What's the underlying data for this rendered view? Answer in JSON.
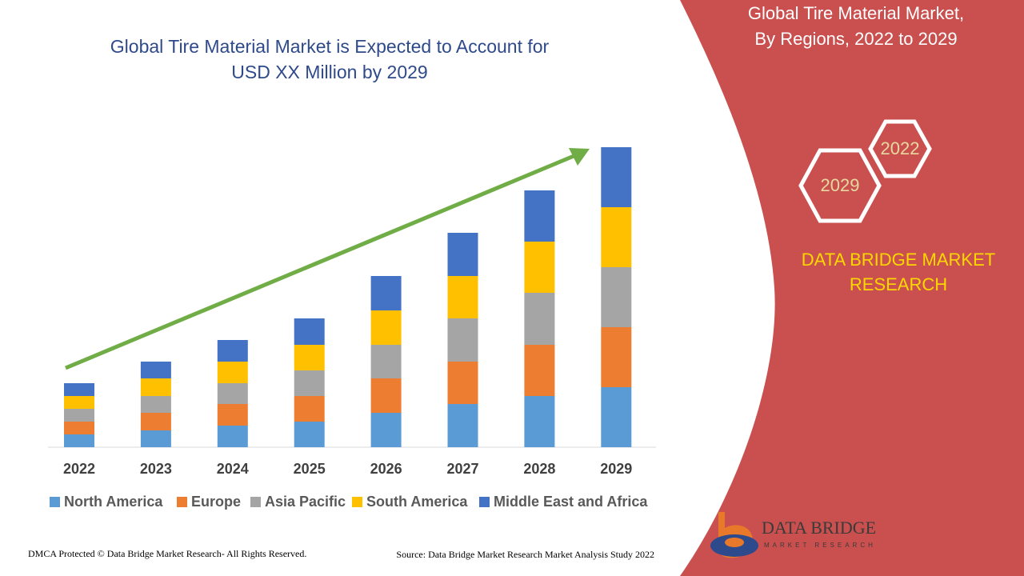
{
  "chart_data": {
    "type": "bar",
    "stacked": true,
    "title": [
      "Global Tire Material Market is Expected to Account for",
      "USD XX Million by 2029"
    ],
    "categories": [
      "2022",
      "2023",
      "2024",
      "2025",
      "2026",
      "2027",
      "2028",
      "2029"
    ],
    "series": [
      {
        "name": "North America",
        "color": "#5b9bd5",
        "values": [
          16,
          21,
          27,
          32,
          43,
          54,
          64,
          75
        ]
      },
      {
        "name": "Europe",
        "color": "#ed7d31",
        "values": [
          16,
          22,
          27,
          32,
          43,
          53,
          64,
          75
        ]
      },
      {
        "name": "Asia Pacific",
        "color": "#a5a5a5",
        "values": [
          16,
          21,
          26,
          32,
          42,
          54,
          65,
          75
        ]
      },
      {
        "name": "South America",
        "color": "#ffc000",
        "values": [
          16,
          22,
          27,
          32,
          43,
          53,
          64,
          75
        ]
      },
      {
        "name": "Middle East and Africa",
        "color": "#4472c4",
        "values": [
          16,
          21,
          27,
          33,
          43,
          54,
          64,
          75
        ]
      }
    ]
  },
  "panel": {
    "title": [
      "Global Tire Material Market,",
      "By Regions, 2022 to 2029"
    ],
    "badges": [
      "2022",
      "2029"
    ],
    "brand": [
      "DATA BRIDGE MARKET",
      "RESEARCH"
    ]
  },
  "logo": {
    "name": "DATA BRIDGE",
    "tagline": "MARKET RESEARCH"
  },
  "footer": {
    "left": "DMCA Protected © Data Bridge Market Research- All Rights Reserved.",
    "right": "Source: Data Bridge Market Research Market Analysis Study 2022"
  }
}
